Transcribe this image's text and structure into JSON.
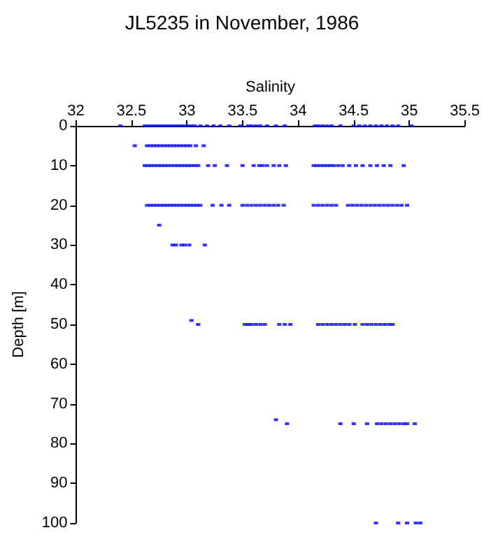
{
  "chart_data": {
    "type": "scatter",
    "title": "JL5235 in November, 1986",
    "xlabel": "Salinity",
    "ylabel": "Depth [m]",
    "xlim": [
      32,
      35.5
    ],
    "xticks": [
      32,
      32.5,
      33,
      33.5,
      34,
      34.5,
      35,
      35.5
    ],
    "ylim": [
      100,
      0
    ],
    "yticks": [
      0,
      10,
      20,
      30,
      40,
      50,
      60,
      70,
      80,
      90,
      100
    ],
    "marker": "square",
    "series": [
      {
        "color": "#0000ff",
        "x": [
          32.4,
          32.62,
          32.65,
          32.68,
          32.71,
          32.74,
          32.77,
          32.8,
          32.83,
          32.86,
          32.89,
          32.92,
          32.95,
          32.98,
          33.01,
          33.04,
          33.07,
          33.12,
          33.18,
          33.24,
          33.3,
          33.38,
          33.48,
          33.55,
          33.58,
          33.62,
          33.66,
          33.72,
          33.8,
          33.88,
          34.15,
          34.18,
          34.22,
          34.26,
          34.3,
          34.38,
          34.5,
          34.55,
          34.6,
          34.65,
          34.7,
          34.75,
          34.8,
          34.85,
          34.9,
          35.02
        ],
        "values": [
          0,
          0,
          0,
          0,
          0,
          0,
          0,
          0,
          0,
          0,
          0,
          0,
          0,
          0,
          0,
          0,
          0,
          0,
          0,
          0,
          0,
          0,
          0,
          0,
          0,
          0,
          0,
          0,
          0,
          0,
          0,
          0,
          0,
          0,
          0,
          0,
          0,
          0,
          0,
          0,
          0,
          0,
          0,
          0,
          0,
          0
        ]
      },
      {
        "color": "#0000ff",
        "x": [
          32.53,
          32.64,
          32.67,
          32.7,
          32.73,
          32.76,
          32.79,
          32.82,
          32.85,
          32.88,
          32.91,
          32.94,
          32.97,
          33.0,
          33.03,
          33.08,
          33.15
        ],
        "values": [
          5,
          5,
          5,
          5,
          5,
          5,
          5,
          5,
          5,
          5,
          5,
          5,
          5,
          5,
          5,
          5,
          5
        ]
      },
      {
        "color": "#0000ff",
        "x": [
          32.62,
          32.65,
          32.68,
          32.71,
          32.74,
          32.77,
          32.8,
          32.83,
          32.86,
          32.89,
          32.92,
          32.95,
          32.98,
          33.01,
          33.04,
          33.07,
          33.1,
          33.19,
          33.25,
          33.36,
          33.5,
          33.6,
          33.65,
          33.68,
          33.72,
          33.78,
          33.83,
          33.89,
          34.14,
          34.17,
          34.2,
          34.23,
          34.26,
          34.29,
          34.32,
          34.36,
          34.4,
          34.46,
          34.52,
          34.58,
          34.65,
          34.71,
          34.77,
          34.83,
          34.95
        ],
        "values": [
          10,
          10,
          10,
          10,
          10,
          10,
          10,
          10,
          10,
          10,
          10,
          10,
          10,
          10,
          10,
          10,
          10,
          10,
          10,
          10,
          10,
          10,
          10,
          10,
          10,
          10,
          10,
          10,
          10,
          10,
          10,
          10,
          10,
          10,
          10,
          10,
          10,
          10,
          10,
          10,
          10,
          10,
          10,
          10,
          10
        ]
      },
      {
        "color": "#0000ff",
        "x": [
          32.64,
          32.67,
          32.7,
          32.73,
          32.76,
          32.79,
          32.82,
          32.85,
          32.88,
          32.91,
          32.94,
          32.97,
          33.0,
          33.03,
          33.06,
          33.09,
          33.12,
          33.23,
          33.31,
          33.38,
          33.5,
          33.54,
          33.58,
          33.62,
          33.66,
          33.7,
          33.74,
          33.78,
          33.82,
          33.87,
          34.14,
          34.18,
          34.22,
          34.26,
          34.3,
          34.34,
          34.45,
          34.49,
          34.53,
          34.57,
          34.61,
          34.65,
          34.69,
          34.73,
          34.77,
          34.81,
          34.85,
          34.89,
          34.93,
          34.98
        ],
        "values": [
          20,
          20,
          20,
          20,
          20,
          20,
          20,
          20,
          20,
          20,
          20,
          20,
          20,
          20,
          20,
          20,
          20,
          20,
          20,
          20,
          20,
          20,
          20,
          20,
          20,
          20,
          20,
          20,
          20,
          20,
          20,
          20,
          20,
          20,
          20,
          20,
          20,
          20,
          20,
          20,
          20,
          20,
          20,
          20,
          20,
          20,
          20,
          20,
          20,
          20
        ]
      },
      {
        "color": "#0000ff",
        "x": [
          32.75,
          32.87,
          32.9,
          32.95,
          32.98,
          33.02,
          33.16
        ],
        "values": [
          25,
          30,
          30,
          30,
          30,
          30,
          30
        ]
      },
      {
        "color": "#0000ff",
        "x": [
          33.04,
          33.1,
          33.52,
          33.55,
          33.58,
          33.62,
          33.66,
          33.7,
          33.83,
          33.88,
          33.93,
          34.18,
          34.22,
          34.26,
          34.3,
          34.34,
          34.38,
          34.42,
          34.46,
          34.51,
          34.58,
          34.62,
          34.66,
          34.7,
          34.74,
          34.78,
          34.82,
          34.85
        ],
        "values": [
          49,
          50,
          50,
          50,
          50,
          50,
          50,
          50,
          50,
          50,
          50,
          50,
          50,
          50,
          50,
          50,
          50,
          50,
          50,
          50,
          50,
          50,
          50,
          50,
          50,
          50,
          50,
          50
        ]
      },
      {
        "color": "#0000ff",
        "x": [
          33.8,
          33.9,
          34.38,
          34.5,
          34.62,
          34.71,
          34.75,
          34.79,
          34.83,
          34.87,
          34.91,
          34.95,
          34.98,
          35.05
        ],
        "values": [
          74,
          75,
          75,
          75,
          75,
          75,
          75,
          75,
          75,
          75,
          75,
          75,
          75,
          75
        ]
      },
      {
        "color": "#0000ff",
        "x": [
          34.7,
          34.9,
          34.98,
          35.06,
          35.1
        ],
        "values": [
          100,
          100,
          100,
          100,
          100
        ]
      }
    ]
  }
}
